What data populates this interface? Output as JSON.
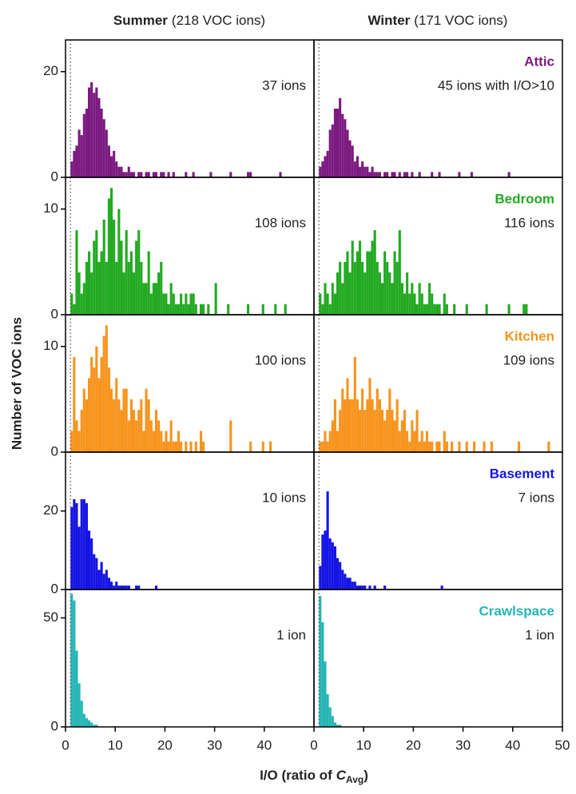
{
  "figure": {
    "columns": [
      {
        "name": "Summer",
        "count": "(218 VOC ions)"
      },
      {
        "name": "Winter",
        "count": "(171 VOC ions)"
      }
    ],
    "y_label": "Number of VOC ions",
    "x_label": {
      "text": "I/O (ratio of",
      "symbol": "C",
      "subscript": "Avg",
      "close": ")"
    }
  },
  "chart_data": [
    {
      "type": "histogram",
      "color": "#7b1a80",
      "annotation": "37 ions",
      "vline": 1,
      "xlim": [
        0,
        50
      ],
      "ylim": [
        0,
        26
      ],
      "yticks": [
        0,
        20
      ],
      "bins": [
        0,
        0.5,
        1,
        1.5,
        2,
        2.5,
        3,
        3.5,
        4,
        4.5,
        5,
        5.5,
        6,
        6.5,
        7,
        7.5,
        8,
        8.5,
        9,
        9.5,
        10,
        10.5,
        11,
        11.5,
        12,
        12.5,
        13,
        13.5,
        14,
        14.5,
        15,
        15.5,
        16,
        16.5,
        17,
        17.5,
        18,
        18.5,
        19,
        19.5,
        20,
        20.5,
        21,
        21.5,
        22,
        22.5,
        23,
        23.5,
        24,
        24.5,
        25,
        25.5,
        26,
        26.5,
        27,
        27.5,
        28,
        28.5,
        29,
        29.5,
        30,
        30.5,
        31,
        31.5,
        32,
        32.5,
        33,
        33.5,
        34,
        34.5,
        35,
        35.5,
        36,
        36.5,
        37,
        37.5,
        38,
        38.5,
        39,
        39.5,
        40,
        40.5,
        41,
        41.5,
        42,
        42.5,
        43,
        43.5
      ],
      "values": [
        0,
        0,
        3,
        5,
        6,
        9,
        8,
        12,
        13,
        17,
        18,
        16,
        17,
        15,
        13,
        11,
        9,
        6,
        4,
        5,
        3,
        2,
        2,
        1,
        1,
        2,
        1,
        1,
        0,
        1,
        1,
        0,
        1,
        1,
        0,
        1,
        1,
        0,
        1,
        1,
        0,
        1,
        0,
        1,
        0,
        0,
        0,
        0,
        1,
        0,
        0,
        1,
        0,
        0,
        0,
        0,
        0,
        0,
        1,
        0,
        0,
        0,
        0,
        0,
        0,
        0,
        1,
        0,
        0,
        0,
        0,
        0,
        0,
        1,
        1,
        0,
        0,
        0,
        0,
        0,
        0,
        0,
        0,
        0,
        0,
        0,
        1
      ]
    },
    {
      "type": "histogram",
      "color": "#7b1a80",
      "label": "Attic",
      "annotation": "45 ions with I/O>10",
      "vline": 1,
      "xlim": [
        0,
        50
      ],
      "ylim": [
        0,
        26
      ],
      "bins": [
        0,
        0.5,
        1,
        1.5,
        2,
        2.5,
        3,
        3.5,
        4,
        4.5,
        5,
        5.5,
        6,
        6.5,
        7,
        7.5,
        8,
        8.5,
        9,
        9.5,
        10,
        10.5,
        11,
        11.5,
        12,
        12.5,
        13,
        13.5,
        14,
        14.5,
        15,
        15.5,
        16,
        16.5,
        17,
        17.5,
        18,
        18.5,
        19,
        19.5,
        20,
        20.5,
        21,
        21.5,
        22,
        22.5,
        23,
        23.5,
        24,
        24.5,
        25,
        25.5,
        26,
        26.5,
        27,
        27.5,
        28,
        28.5,
        29,
        29.5,
        30,
        30.5,
        31,
        31.5,
        32,
        32.5,
        33,
        33.5,
        34,
        34.5,
        35,
        35.5,
        36,
        36.5,
        37,
        37.5,
        38,
        38.5,
        39,
        39.5
      ],
      "values": [
        0,
        0,
        2,
        3,
        4,
        5,
        9,
        10,
        13,
        13,
        15,
        12,
        11,
        9,
        7,
        6,
        3,
        4,
        2,
        3,
        2,
        2,
        1,
        2,
        1,
        1,
        1,
        0,
        1,
        1,
        0,
        1,
        1,
        0,
        1,
        0,
        1,
        1,
        0,
        1,
        0,
        0,
        1,
        0,
        0,
        0,
        0,
        1,
        0,
        0,
        1,
        0,
        0,
        0,
        0,
        0,
        0,
        0,
        1,
        0,
        0,
        0,
        0,
        1,
        0,
        0,
        0,
        0,
        0,
        0,
        0,
        0,
        0,
        0,
        0,
        0,
        0,
        0,
        1
      ]
    },
    {
      "type": "histogram",
      "color": "#22aa22",
      "annotation": "108 ions",
      "vline": 1,
      "xlim": [
        0,
        50
      ],
      "ylim": [
        0,
        13
      ],
      "yticks": [
        0,
        10
      ],
      "bins": [
        0,
        0.5,
        1,
        1.5,
        2,
        2.5,
        3,
        3.5,
        4,
        4.5,
        5,
        5.5,
        6,
        6.5,
        7,
        7.5,
        8,
        8.5,
        9,
        9.5,
        10,
        10.5,
        11,
        11.5,
        12,
        12.5,
        13,
        13.5,
        14,
        14.5,
        15,
        15.5,
        16,
        16.5,
        17,
        17.5,
        18,
        18.5,
        19,
        19.5,
        20,
        20.5,
        21,
        21.5,
        22,
        22.5,
        23,
        23.5,
        24,
        24.5,
        25,
        25.5,
        26,
        26.5,
        27,
        27.5,
        28,
        28.5,
        29,
        29.5,
        30,
        30.5,
        31,
        31.5,
        32,
        32.5,
        33,
        33.5,
        34,
        34.5,
        35,
        35.5,
        36,
        36.5,
        37,
        37.5,
        38,
        38.5,
        39,
        39.5,
        40,
        40.5,
        41,
        41.5,
        42,
        42.5,
        43,
        43.5,
        44,
        44.5
      ],
      "values": [
        0,
        0,
        2,
        1,
        8,
        4,
        2,
        3,
        5,
        6,
        4,
        7,
        8,
        5,
        6,
        9,
        5,
        11,
        12,
        9,
        5,
        10,
        7,
        4,
        8,
        5,
        6,
        4,
        7,
        8,
        5,
        3,
        3,
        6,
        2,
        3,
        3,
        4,
        5,
        2,
        2,
        1,
        3,
        2,
        1,
        1,
        2,
        1,
        2,
        1,
        2,
        2,
        1,
        0,
        1,
        1,
        0,
        1,
        0,
        0,
        3,
        0,
        0,
        0,
        0,
        1,
        0,
        0,
        0,
        0,
        0,
        0,
        0,
        1,
        0,
        0,
        0,
        0,
        0,
        1,
        0,
        0,
        0,
        0,
        1,
        0,
        0,
        0,
        1
      ]
    },
    {
      "type": "histogram",
      "color": "#22aa22",
      "label": "Bedroom",
      "annotation": "116 ions",
      "vline": 1,
      "xlim": [
        0,
        50
      ],
      "ylim": [
        0,
        13
      ],
      "bins": [
        0,
        0.5,
        1,
        1.5,
        2,
        2.5,
        3,
        3.5,
        4,
        4.5,
        5,
        5.5,
        6,
        6.5,
        7,
        7.5,
        8,
        8.5,
        9,
        9.5,
        10,
        10.5,
        11,
        11.5,
        12,
        12.5,
        13,
        13.5,
        14,
        14.5,
        15,
        15.5,
        16,
        16.5,
        17,
        17.5,
        18,
        18.5,
        19,
        19.5,
        20,
        20.5,
        21,
        21.5,
        22,
        22.5,
        23,
        23.5,
        24,
        24.5,
        25,
        25.5,
        26,
        26.5,
        27,
        27.5,
        28,
        28.5,
        29,
        29.5,
        30,
        30.5,
        31,
        31.5,
        32,
        32.5,
        33,
        33.5,
        34,
        34.5,
        35,
        35.5,
        36,
        36.5,
        37,
        37.5,
        38,
        38.5,
        39,
        39.5,
        40,
        40.5,
        41,
        41.5,
        42,
        42.5,
        43
      ],
      "values": [
        0,
        0,
        2,
        1,
        3,
        2,
        1,
        3,
        2,
        4,
        5,
        3,
        5,
        6,
        4,
        7,
        5,
        6,
        7,
        5,
        4,
        6,
        6,
        7,
        8,
        5,
        4,
        3,
        6,
        5,
        4,
        3,
        6,
        5,
        8,
        3,
        2,
        4,
        2,
        3,
        2,
        1,
        3,
        2,
        1,
        1,
        3,
        2,
        1,
        1,
        1,
        0,
        2,
        1,
        0,
        0,
        1,
        0,
        0,
        0,
        0,
        1,
        0,
        0,
        0,
        0,
        0,
        0,
        0,
        1,
        0,
        0,
        0,
        0,
        0,
        0,
        0,
        0,
        1,
        0,
        0,
        0,
        0,
        0,
        1,
        1
      ]
    },
    {
      "type": "histogram",
      "color": "#f7941d",
      "annotation": "100 ions",
      "vline": 1,
      "xlim": [
        0,
        50
      ],
      "ylim": [
        0,
        13
      ],
      "yticks": [
        0,
        10
      ],
      "bins": [
        0,
        0.5,
        1,
        1.5,
        2,
        2.5,
        3,
        3.5,
        4,
        4.5,
        5,
        5.5,
        6,
        6.5,
        7,
        7.5,
        8,
        8.5,
        9,
        9.5,
        10,
        10.5,
        11,
        11.5,
        12,
        12.5,
        13,
        13.5,
        14,
        14.5,
        15,
        15.5,
        16,
        16.5,
        17,
        17.5,
        18,
        18.5,
        19,
        19.5,
        20,
        20.5,
        21,
        21.5,
        22,
        22.5,
        23,
        23.5,
        24,
        24.5,
        25,
        25.5,
        26,
        26.5,
        27,
        27.5,
        28,
        28.5,
        29,
        29.5,
        30,
        30.5,
        31,
        31.5,
        32,
        32.5,
        33,
        33.5,
        34,
        34.5,
        35,
        35.5,
        36,
        36.5,
        37,
        37.5,
        38,
        38.5,
        39,
        39.5,
        40,
        40.5,
        41,
        41.5
      ],
      "values": [
        0,
        0,
        2,
        9,
        3,
        2,
        4,
        6,
        5,
        7,
        9,
        8,
        10,
        7,
        9,
        11,
        12,
        8,
        6,
        5,
        7,
        5,
        4,
        6,
        6,
        3,
        5,
        4,
        3,
        4,
        5,
        2,
        6,
        5,
        3,
        2,
        4,
        3,
        2,
        1,
        2,
        1,
        3,
        1,
        1,
        2,
        1,
        0,
        1,
        0,
        1,
        0,
        1,
        0,
        2,
        1,
        0,
        0,
        0,
        0,
        0,
        0,
        0,
        0,
        0,
        0,
        3,
        0,
        0,
        0,
        0,
        0,
        0,
        0,
        1,
        0,
        0,
        0,
        0,
        1,
        0,
        0,
        1
      ]
    },
    {
      "type": "histogram",
      "color": "#f7941d",
      "label": "Kitchen",
      "annotation": "109 ions",
      "vline": 1,
      "xlim": [
        0,
        50
      ],
      "ylim": [
        0,
        13
      ],
      "bins": [
        0,
        0.5,
        1,
        1.5,
        2,
        2.5,
        3,
        3.5,
        4,
        4.5,
        5,
        5.5,
        6,
        6.5,
        7,
        7.5,
        8,
        8.5,
        9,
        9.5,
        10,
        10.5,
        11,
        11.5,
        12,
        12.5,
        13,
        13.5,
        14,
        14.5,
        15,
        15.5,
        16,
        16.5,
        17,
        17.5,
        18,
        18.5,
        19,
        19.5,
        20,
        20.5,
        21,
        21.5,
        22,
        22.5,
        23,
        23.5,
        24,
        24.5,
        25,
        25.5,
        26,
        26.5,
        27,
        27.5,
        28,
        28.5,
        29,
        29.5,
        30,
        30.5,
        31,
        31.5,
        32,
        32.5,
        33,
        33.5,
        34,
        34.5,
        35,
        35.5,
        36,
        36.5,
        37,
        37.5,
        38,
        38.5,
        39,
        39.5,
        40,
        40.5,
        41,
        41.5,
        42,
        42.5,
        43,
        43.5,
        44,
        44.5,
        45,
        45.5,
        46,
        46.5,
        47,
        47.5
      ],
      "values": [
        0,
        0,
        1,
        1,
        2,
        1,
        2,
        3,
        5,
        2,
        4,
        6,
        5,
        7,
        5,
        5,
        9,
        5,
        4,
        6,
        4,
        5,
        7,
        5,
        4,
        6,
        5,
        4,
        3,
        4,
        6,
        4,
        3,
        5,
        2,
        3,
        4,
        2,
        1,
        3,
        2,
        4,
        1,
        2,
        1,
        2,
        1,
        1,
        0,
        1,
        1,
        0,
        2,
        1,
        0,
        1,
        0,
        0,
        1,
        0,
        0,
        1,
        0,
        0,
        1,
        0,
        0,
        0,
        1,
        0,
        0,
        1,
        0,
        0,
        0,
        0,
        0,
        0,
        0,
        0,
        0,
        0,
        1,
        0,
        0,
        0,
        0,
        0,
        0,
        0,
        0,
        0,
        0,
        0,
        1
      ]
    },
    {
      "type": "histogram",
      "color": "#1414e6",
      "annotation": "10 ions",
      "vline": 1,
      "xlim": [
        0,
        50
      ],
      "ylim": [
        0,
        35
      ],
      "yticks": [
        0,
        20
      ],
      "bins": [
        0,
        0.5,
        1,
        1.5,
        2,
        2.5,
        3,
        3.5,
        4,
        4.5,
        5,
        5.5,
        6,
        6.5,
        7,
        7.5,
        8,
        8.5,
        9,
        9.5,
        10,
        10.5,
        11,
        11.5,
        12,
        12.5,
        13,
        13.5,
        14,
        14.5,
        15,
        15.5,
        16,
        16.5,
        17,
        17.5,
        18,
        18.5
      ],
      "values": [
        0,
        0,
        21,
        23,
        22,
        16,
        23,
        23,
        22,
        15,
        13,
        9,
        8,
        5,
        7,
        4,
        5,
        3,
        2,
        1,
        2,
        1,
        1,
        1,
        1,
        1,
        0,
        0,
        1,
        1,
        0,
        0,
        0,
        0,
        0,
        0,
        1
      ]
    },
    {
      "type": "histogram",
      "color": "#1414e6",
      "label": "Basement",
      "annotation": "7 ions",
      "vline": 1,
      "xlim": [
        0,
        50
      ],
      "ylim": [
        0,
        35
      ],
      "bins": [
        0,
        0.5,
        1,
        1.5,
        2,
        2.5,
        3,
        3.5,
        4,
        4.5,
        5,
        5.5,
        6,
        6.5,
        7,
        7.5,
        8,
        8.5,
        9,
        9.5,
        10,
        10.5,
        11,
        11.5,
        12,
        12.5,
        13,
        13.5,
        14,
        14.5,
        15,
        15.5,
        16,
        16.5,
        17,
        17.5,
        18,
        18.5,
        19,
        19.5,
        20,
        20.5,
        21,
        21.5,
        22,
        22.5,
        23,
        23.5,
        24,
        24.5,
        25,
        25.5,
        26
      ],
      "values": [
        0,
        0,
        6,
        14,
        15,
        25,
        13,
        12,
        11,
        8,
        7,
        5,
        4,
        3,
        3,
        2,
        2,
        1,
        1,
        1,
        1,
        0,
        1,
        0,
        1,
        0,
        0,
        0,
        1,
        0,
        0,
        0,
        0,
        0,
        0,
        0,
        0,
        0,
        0,
        0,
        0,
        0,
        0,
        0,
        0,
        0,
        0,
        0,
        0,
        0,
        0,
        1
      ]
    },
    {
      "type": "histogram",
      "color": "#26b5b5",
      "annotation": "1 ion",
      "vline": 1,
      "xlim": [
        0,
        50
      ],
      "ylim": [
        0,
        63
      ],
      "yticks": [
        0,
        50
      ],
      "xticks": [
        0,
        10,
        20,
        30,
        40
      ],
      "bins": [
        0,
        0.5,
        1,
        1.5,
        2,
        2.5,
        3,
        3.5,
        4,
        4.5,
        5,
        5.5,
        6,
        6.5
      ],
      "values": [
        0,
        0,
        61,
        58,
        35,
        20,
        12,
        6,
        4,
        3,
        2,
        1,
        1
      ]
    },
    {
      "type": "histogram",
      "color": "#26b5b5",
      "label": "Crawlspace",
      "annotation": "1 ion",
      "vline": 1,
      "xlim": [
        0,
        50
      ],
      "ylim": [
        0,
        63
      ],
      "xticks": [
        0,
        10,
        20,
        30,
        40,
        50
      ],
      "bins": [
        0,
        0.5,
        1,
        1.5,
        2,
        2.5,
        3,
        3.5,
        4,
        4.5,
        5,
        5.5
      ],
      "values": [
        0,
        0,
        60,
        48,
        30,
        15,
        9,
        5,
        2,
        1,
        1
      ]
    }
  ]
}
